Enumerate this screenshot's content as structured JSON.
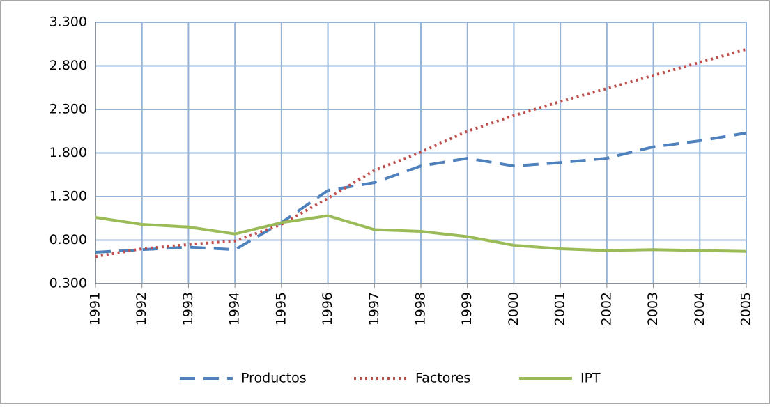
{
  "chart_data": {
    "type": "line",
    "categories": [
      "1991",
      "1992",
      "1993",
      "1994",
      "1995",
      "1996",
      "1997",
      "1998",
      "1999",
      "2000",
      "2001",
      "2002",
      "2003",
      "2004",
      "2005"
    ],
    "series": [
      {
        "name": "Productos",
        "color": "#4f81bd",
        "style": "dashed",
        "values": [
          0.66,
          0.69,
          0.72,
          0.69,
          1.0,
          1.37,
          1.46,
          1.65,
          1.74,
          1.65,
          1.69,
          1.74,
          1.87,
          1.94,
          2.03
        ]
      },
      {
        "name": "Factores",
        "color": "#c0504d",
        "style": "dotted",
        "values": [
          0.61,
          0.7,
          0.75,
          0.79,
          0.98,
          1.28,
          1.6,
          1.81,
          2.05,
          2.23,
          2.39,
          2.54,
          2.69,
          2.84,
          2.99
        ]
      },
      {
        "name": "IPT",
        "color": "#9bbb59",
        "style": "solid",
        "values": [
          1.06,
          0.98,
          0.95,
          0.87,
          1.0,
          1.08,
          0.92,
          0.9,
          0.84,
          0.74,
          0.7,
          0.68,
          0.69,
          0.68,
          0.67
        ]
      }
    ],
    "ylim": [
      0.3,
      3.3
    ],
    "yticks": [
      {
        "value": 0.3,
        "label": "0.300"
      },
      {
        "value": 0.8,
        "label": "0.800"
      },
      {
        "value": 1.3,
        "label": "1.300"
      },
      {
        "value": 1.8,
        "label": "1.800"
      },
      {
        "value": 2.3,
        "label": "2.300"
      },
      {
        "value": 2.8,
        "label": "2.800"
      },
      {
        "value": 3.3,
        "label": "3.300"
      }
    ],
    "grid": true,
    "legend": "bottom"
  }
}
